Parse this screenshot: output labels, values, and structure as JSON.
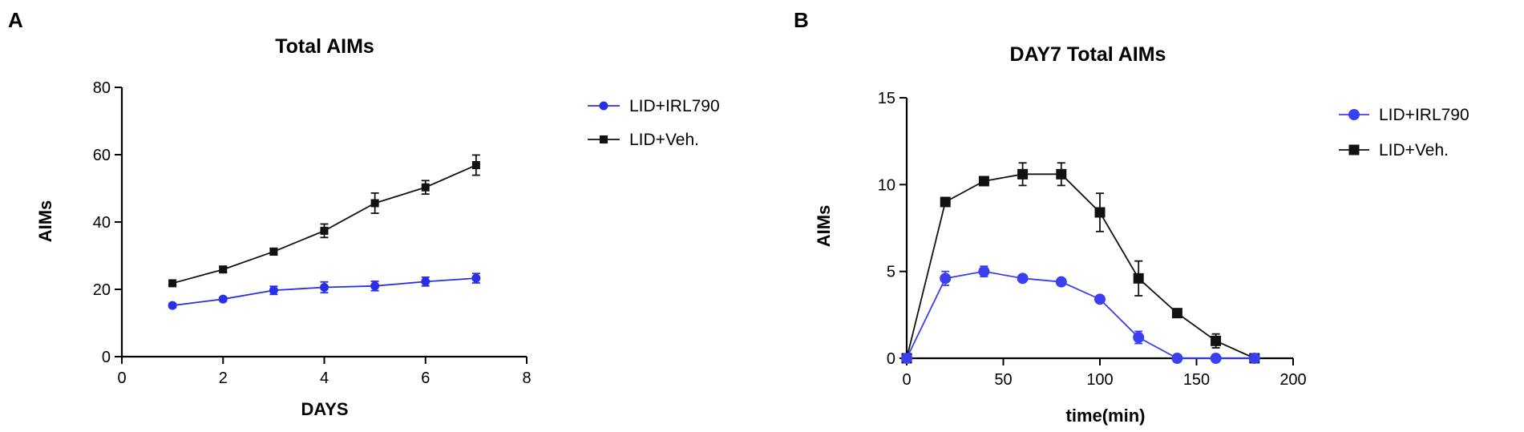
{
  "panels": [
    {
      "letter": "A",
      "chart_data": {
        "type": "line",
        "title": "Total AIMs",
        "xlabel": "DAYS",
        "ylabel": "AIMs",
        "xlim": [
          0,
          8
        ],
        "ylim": [
          0,
          80
        ],
        "xticks": [
          0,
          2,
          4,
          6,
          8
        ],
        "yticks": [
          0,
          20,
          40,
          60,
          80
        ],
        "grid": false,
        "legend_position": "right",
        "x": [
          1,
          2,
          3,
          4,
          5,
          6,
          7
        ],
        "series": [
          {
            "name": "LID+IRL790",
            "color": "#2a2ee6",
            "marker": "circle",
            "values": [
              15.2,
              17.1,
              19.7,
              20.6,
              21.0,
              22.3,
              23.3
            ],
            "errors": [
              0.6,
              0.6,
              1.2,
              1.6,
              1.4,
              1.3,
              1.4
            ]
          },
          {
            "name": "LID+Veh.",
            "color": "#111111",
            "marker": "square",
            "values": [
              21.8,
              25.9,
              31.2,
              37.4,
              45.6,
              50.3,
              56.9
            ],
            "errors": [
              0.6,
              0.8,
              1.0,
              2.0,
              3.0,
              2.0,
              3.0
            ]
          }
        ]
      }
    },
    {
      "letter": "B",
      "chart_data": {
        "type": "line",
        "title": "DAY7 Total AIMs",
        "xlabel": "time(min)",
        "ylabel": "AIMs",
        "xlim": [
          0,
          200
        ],
        "ylim": [
          0,
          15
        ],
        "xticks": [
          0,
          50,
          100,
          150,
          200
        ],
        "yticks": [
          0,
          5,
          10,
          15
        ],
        "grid": false,
        "legend_position": "right",
        "x": [
          0,
          20,
          40,
          60,
          80,
          100,
          120,
          140,
          160,
          180
        ],
        "series": [
          {
            "name": "LID+IRL790",
            "color": "#3b3ff0",
            "marker": "circle",
            "values": [
              0,
              4.6,
              5.0,
              4.6,
              4.4,
              3.4,
              1.2,
              0,
              0,
              0
            ],
            "errors": [
              0,
              0.4,
              0.3,
              0.15,
              0.15,
              0.15,
              0.35,
              0,
              0,
              0
            ]
          },
          {
            "name": "LID+Veh.",
            "color": "#111111",
            "marker": "square",
            "values": [
              0,
              9.0,
              10.2,
              10.6,
              10.6,
              8.4,
              4.6,
              2.6,
              1.0,
              0
            ],
            "errors": [
              0,
              0.15,
              0.2,
              0.65,
              0.65,
              1.1,
              1.0,
              0.1,
              0.4,
              0
            ]
          }
        ]
      }
    }
  ]
}
